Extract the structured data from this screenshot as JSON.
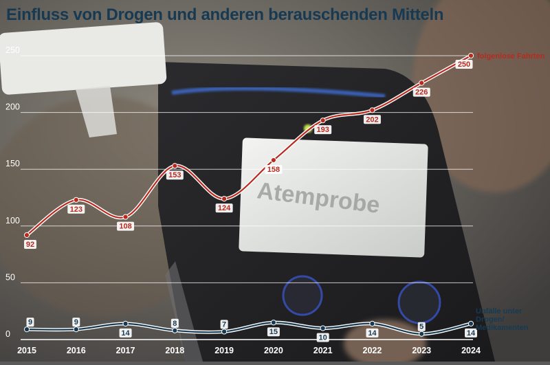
{
  "page": {
    "title": "Einfluss von Drogen und anderen berauschenden Mitteln"
  },
  "background": {
    "screen_text": "Atemprobe"
  },
  "colors": {
    "series_red": "#b82a1f",
    "series_navy": "#173a52",
    "title": "#173a52",
    "label_bg": "#ffffff"
  },
  "chart_data": {
    "type": "line",
    "title": "Einfluss von Drogen und anderen berauschenden Mitteln",
    "x": [
      "2015",
      "2016",
      "2017",
      "2018",
      "2019",
      "2020",
      "2021",
      "2022",
      "2023",
      "2024"
    ],
    "ylim": [
      0,
      250
    ],
    "yticks": [
      "0",
      "50",
      "100",
      "150",
      "200",
      "250"
    ],
    "grid": true,
    "series": [
      {
        "name": "folgenlose Fahrten",
        "values": [
          92,
          123,
          108,
          153,
          124,
          158,
          193,
          202,
          226,
          250
        ]
      },
      {
        "name": "Unfälle unter Drogen/ Medikamenten",
        "values": [
          9,
          9,
          14,
          8,
          7,
          15,
          10,
          14,
          5,
          14
        ]
      }
    ]
  }
}
